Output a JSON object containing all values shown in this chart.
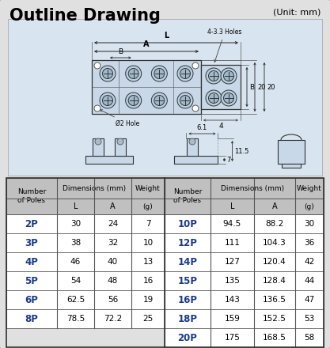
{
  "title": "Outline Drawing",
  "unit": "(Unit: mm)",
  "bg_color": "#e0e0e0",
  "header_bg": "#c8c8c8",
  "subheader_bg": "#d4d4d4",
  "drawing_bg": "#d8e4ef",
  "pole_color": "#1a3a8c",
  "border_color": "#555555",
  "left_table": {
    "rows": [
      [
        "2P",
        "30",
        "24",
        "7"
      ],
      [
        "3P",
        "38",
        "32",
        "10"
      ],
      [
        "4P",
        "46",
        "40",
        "13"
      ],
      [
        "5P",
        "54",
        "48",
        "16"
      ],
      [
        "6P",
        "62.5",
        "56",
        "19"
      ],
      [
        "8P",
        "78.5",
        "72.2",
        "25"
      ]
    ]
  },
  "right_table": {
    "rows": [
      [
        "10P",
        "94.5",
        "88.2",
        "30"
      ],
      [
        "12P",
        "111",
        "104.3",
        "36"
      ],
      [
        "14P",
        "127",
        "120.4",
        "42"
      ],
      [
        "15P",
        "135",
        "128.4",
        "44"
      ],
      [
        "16P",
        "143",
        "136.5",
        "47"
      ],
      [
        "18P",
        "159",
        "152.5",
        "53"
      ],
      [
        "20P",
        "175",
        "168.5",
        "58"
      ]
    ]
  }
}
